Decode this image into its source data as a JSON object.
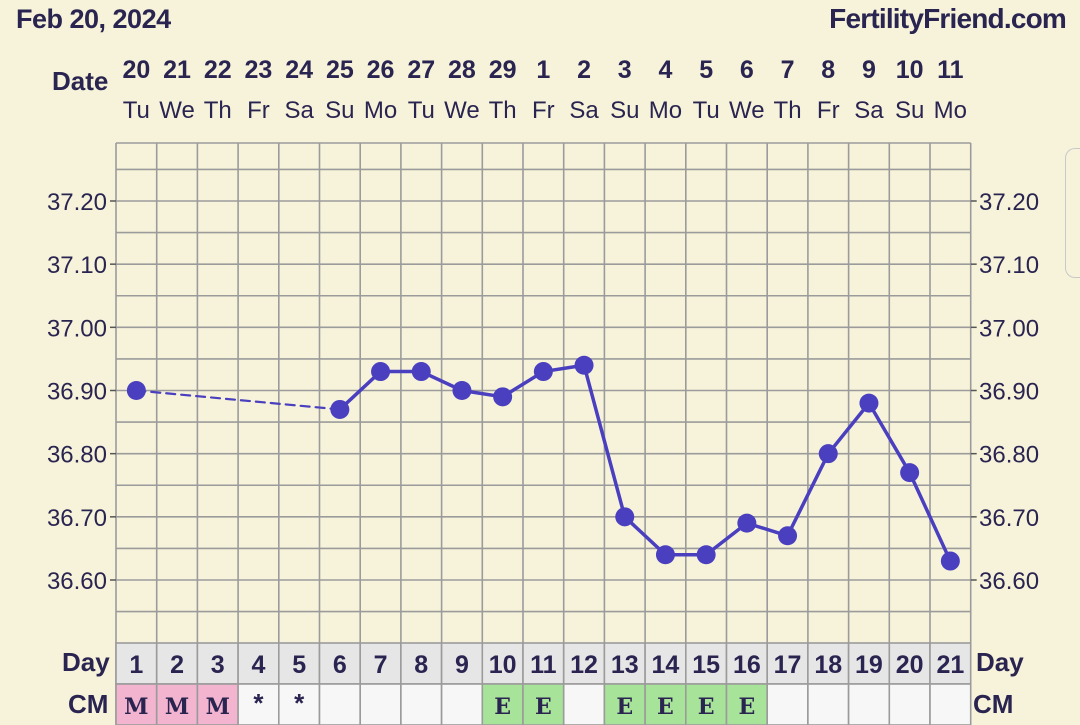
{
  "header": {
    "chart_date": "Feb 20, 2024",
    "brand": "FertilityFriend.com",
    "date_label": "Date",
    "day_label": "Day",
    "cm_label": "CM"
  },
  "colors": {
    "line": "#4a3fbf",
    "grid": "#9b9b9b",
    "background": "#f7f3db",
    "menstruation_cell": "#f2b4cf",
    "egg_white_cell": "#a8e39a",
    "day_row": "#e6e6e6",
    "cm_empty": "#f7f7f7"
  },
  "chart_data": {
    "type": "line",
    "title": "",
    "xlabel": "Day",
    "ylabel": "",
    "cycle_days": [
      "1",
      "2",
      "3",
      "4",
      "5",
      "6",
      "7",
      "8",
      "9",
      "10",
      "11",
      "12",
      "13",
      "14",
      "15",
      "16",
      "17",
      "18",
      "19",
      "20",
      "21"
    ],
    "dates": [
      "20",
      "21",
      "22",
      "23",
      "24",
      "25",
      "26",
      "27",
      "28",
      "29",
      "1",
      "2",
      "3",
      "4",
      "5",
      "6",
      "7",
      "8",
      "9",
      "10",
      "11"
    ],
    "weekdays": [
      "Tu",
      "We",
      "Th",
      "Fr",
      "Sa",
      "Su",
      "Mo",
      "Tu",
      "We",
      "Th",
      "Fr",
      "Sa",
      "Su",
      "Mo",
      "Tu",
      "We",
      "Th",
      "Fr",
      "Sa",
      "Su",
      "Mo"
    ],
    "yticks": [
      "37.20",
      "37.10",
      "37.00",
      "36.90",
      "36.80",
      "36.70",
      "36.60"
    ],
    "ylim": [
      36.51,
      37.29
    ],
    "series": [
      {
        "values": [
          36.9,
          null,
          null,
          null,
          null,
          36.87,
          36.93,
          36.93,
          36.9,
          36.89,
          36.93,
          36.94,
          36.7,
          36.64,
          36.64,
          36.69,
          36.67,
          36.8,
          36.88,
          36.77,
          36.63
        ]
      }
    ],
    "gap_style": "dashed",
    "cervical_mucus": [
      "M",
      "M",
      "M",
      "*",
      "*",
      "",
      "",
      "",
      "",
      "E",
      "E",
      "",
      "E",
      "E",
      "E",
      "E",
      "",
      "",
      "",
      "",
      ""
    ],
    "grid": true
  }
}
